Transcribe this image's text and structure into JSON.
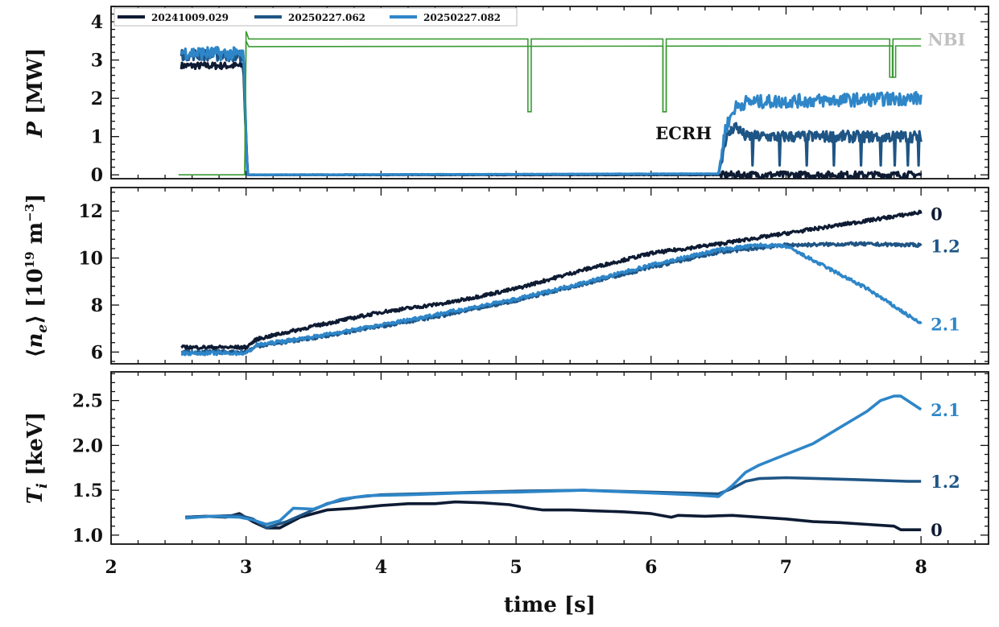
{
  "chart_data": [
    {
      "type": "line",
      "ylabel": "P [MW]",
      "xlim": [
        2,
        8.5
      ],
      "ylim": [
        -0.1,
        4.4
      ],
      "yticks": [
        0,
        1,
        2,
        3,
        4
      ],
      "grid": false,
      "legend": {
        "placement": "top-left",
        "entries": [
          "20241009.029",
          "20250227.062",
          "20250227.082"
        ]
      },
      "annotations": [
        {
          "text": "NBI",
          "color": "#c0c0c0"
        },
        {
          "text": "ECRH",
          "color": "#111111"
        }
      ],
      "series": [
        {
          "name": "20241009.029",
          "color": "#0e1b33",
          "x": [
            2.52,
            2.98,
            3.01,
            6.5,
            6.53,
            8.0
          ],
          "y": [
            2.85,
            2.85,
            0.0,
            0.0,
            0.0,
            0.0
          ]
        },
        {
          "name": "20250227.062",
          "color": "#1f5585",
          "x": [
            2.52,
            2.98,
            3.01,
            6.5,
            6.55,
            6.62,
            6.7,
            8.0
          ],
          "y": [
            3.15,
            3.1,
            0.0,
            0.02,
            0.9,
            1.3,
            1.0,
            1.0
          ],
          "band": 0.3
        },
        {
          "name": "20250227.082",
          "color": "#2e86c8",
          "x": [
            2.52,
            2.98,
            3.01,
            6.5,
            6.55,
            6.62,
            6.7,
            8.0
          ],
          "y": [
            3.2,
            3.15,
            0.0,
            0.03,
            1.2,
            1.75,
            1.9,
            2.0
          ],
          "band": 0.35
        },
        {
          "name": "NBI",
          "color": "#3a9a33",
          "x": [
            2.5,
            2.99,
            3.0,
            3.02,
            8.0
          ],
          "y": [
            0.0,
            0.0,
            3.75,
            3.55,
            3.55
          ],
          "dips": [
            {
              "x": 5.1,
              "y": 1.65
            },
            {
              "x": 6.1,
              "y": 1.65
            },
            {
              "x": 7.78,
              "y": 2.55
            }
          ]
        },
        {
          "name": "NBI",
          "color": "#3a9a33",
          "x": [
            2.99,
            3.0,
            3.02,
            8.0
          ],
          "y": [
            0.0,
            3.5,
            3.35,
            3.37
          ],
          "dips": [
            {
              "x": 6.1,
              "y": 1.65
            },
            {
              "x": 7.8,
              "y": 2.55
            }
          ]
        }
      ]
    },
    {
      "type": "line",
      "ylabel": "⟨n_e⟩ [10^19 m^−3]",
      "xlim": [
        2,
        8.5
      ],
      "ylim": [
        5.5,
        13.0
      ],
      "yticks": [
        6,
        8,
        10,
        12
      ],
      "grid": false,
      "series": [
        {
          "name": "20241009.029",
          "color": "#0e1b33",
          "end_label": "0",
          "x": [
            2.52,
            3.0,
            3.08,
            3.5,
            4.0,
            4.5,
            5.0,
            5.5,
            6.0,
            6.5,
            7.0,
            7.5,
            8.0
          ],
          "y": [
            6.2,
            6.2,
            6.55,
            7.1,
            7.7,
            8.1,
            8.7,
            9.5,
            10.2,
            10.6,
            11.05,
            11.5,
            11.95
          ]
        },
        {
          "name": "20250227.062",
          "color": "#1f5585",
          "end_label": "1.2",
          "x": [
            2.52,
            3.0,
            3.08,
            3.5,
            4.0,
            4.5,
            5.0,
            5.5,
            6.0,
            6.5,
            7.0,
            7.5,
            8.0
          ],
          "y": [
            6.0,
            6.0,
            6.25,
            6.6,
            7.1,
            7.6,
            8.2,
            8.9,
            9.6,
            10.25,
            10.55,
            10.6,
            10.55
          ]
        },
        {
          "name": "20250227.082",
          "color": "#2e86c8",
          "end_label": "2.1",
          "x": [
            2.52,
            3.0,
            3.08,
            3.5,
            4.0,
            4.5,
            5.0,
            5.5,
            6.0,
            6.5,
            6.8,
            7.0,
            7.3,
            7.6,
            8.0
          ],
          "y": [
            5.95,
            5.95,
            6.3,
            6.65,
            7.15,
            7.7,
            8.25,
            8.95,
            9.7,
            10.35,
            10.55,
            10.5,
            9.6,
            8.7,
            7.2
          ]
        }
      ]
    },
    {
      "type": "line",
      "xlabel": "time [s]",
      "ylabel": "T_i [keV]",
      "xlim": [
        2,
        8.5
      ],
      "ylim": [
        0.9,
        2.82
      ],
      "yticks": [
        1.0,
        1.5,
        2.0,
        2.5
      ],
      "xticks": [
        2,
        3,
        4,
        5,
        6,
        7,
        8
      ],
      "grid": false,
      "series": [
        {
          "name": "20241009.029",
          "color": "#0e1b33",
          "end_label": "0",
          "x": [
            2.55,
            2.7,
            2.85,
            2.95,
            3.05,
            3.15,
            3.25,
            3.4,
            3.6,
            3.8,
            4.0,
            4.2,
            4.4,
            4.55,
            4.75,
            4.95,
            5.1,
            5.2,
            5.4,
            5.6,
            5.8,
            6.0,
            6.15,
            6.2,
            6.4,
            6.6,
            6.8,
            7.0,
            7.2,
            7.4,
            7.6,
            7.8,
            7.85,
            8.0
          ],
          "y": [
            1.2,
            1.21,
            1.2,
            1.24,
            1.15,
            1.08,
            1.08,
            1.2,
            1.28,
            1.3,
            1.33,
            1.35,
            1.35,
            1.37,
            1.36,
            1.34,
            1.3,
            1.28,
            1.28,
            1.27,
            1.26,
            1.24,
            1.2,
            1.22,
            1.21,
            1.22,
            1.2,
            1.18,
            1.15,
            1.14,
            1.12,
            1.1,
            1.06,
            1.06
          ]
        },
        {
          "name": "20250227.062",
          "color": "#1f5585",
          "end_label": "1.2",
          "x": [
            2.55,
            2.75,
            2.95,
            3.05,
            3.15,
            3.3,
            3.45,
            3.6,
            3.8,
            4.0,
            4.5,
            5.0,
            5.5,
            6.0,
            6.5,
            6.6,
            6.7,
            6.8,
            7.0,
            7.5,
            7.9,
            8.0
          ],
          "y": [
            1.2,
            1.21,
            1.22,
            1.18,
            1.08,
            1.15,
            1.25,
            1.35,
            1.42,
            1.45,
            1.47,
            1.49,
            1.5,
            1.48,
            1.46,
            1.52,
            1.6,
            1.63,
            1.64,
            1.62,
            1.6,
            1.6
          ]
        },
        {
          "name": "20250227.082",
          "color": "#2e86c8",
          "end_label": "2.1",
          "x": [
            2.55,
            2.75,
            2.95,
            3.05,
            3.15,
            3.25,
            3.35,
            3.5,
            3.7,
            3.9,
            4.2,
            4.6,
            5.0,
            5.5,
            6.0,
            6.3,
            6.5,
            6.6,
            6.7,
            6.8,
            7.0,
            7.2,
            7.4,
            7.6,
            7.7,
            7.8,
            7.85,
            8.0
          ],
          "y": [
            1.19,
            1.21,
            1.2,
            1.17,
            1.12,
            1.16,
            1.3,
            1.29,
            1.4,
            1.44,
            1.45,
            1.47,
            1.48,
            1.5,
            1.47,
            1.45,
            1.43,
            1.55,
            1.7,
            1.78,
            1.9,
            2.02,
            2.2,
            2.38,
            2.5,
            2.55,
            2.55,
            2.4
          ]
        }
      ]
    }
  ]
}
